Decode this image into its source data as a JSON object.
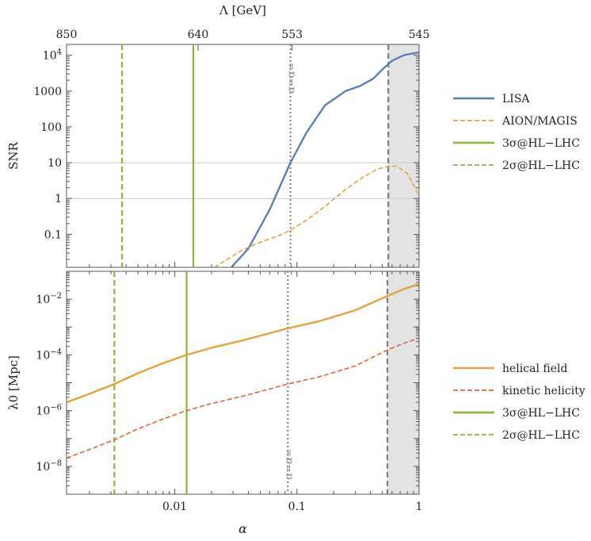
{
  "chart_data": [
    {
      "type": "line",
      "panel": "top",
      "ylabel": "SNR",
      "yscale": "log",
      "xscale": "log",
      "xlim": [
        0.0013,
        1.0
      ],
      "ylim": [
        0.012,
        20000
      ],
      "yticks": [
        {
          "v": 10000,
          "label": "10^4"
        },
        {
          "v": 1000,
          "label": "1000"
        },
        {
          "v": 100,
          "label": "100"
        },
        {
          "v": 10,
          "label": "10"
        },
        {
          "v": 1,
          "label": "1"
        },
        {
          "v": 0.1,
          "label": "0.1"
        }
      ],
      "hlines": [
        10,
        1
      ],
      "top_axis": {
        "label": "Λ [GeV]",
        "ticks": [
          {
            "alpha": 0.0013,
            "label": "850"
          },
          {
            "alpha": 0.0155,
            "label": "640"
          },
          {
            "alpha": 0.0913,
            "label": "553"
          },
          {
            "alpha": 1.0,
            "label": "545"
          }
        ]
      },
      "vlines": [
        {
          "x": 0.0037,
          "style": "dashed",
          "color": "#8fb339"
        },
        {
          "x": 0.0142,
          "style": "solid",
          "color": "#8fb339"
        },
        {
          "x": 0.0885,
          "style": "dotted",
          "color": "#7f7f7f",
          "label": "α=α∞"
        },
        {
          "x": 0.56,
          "style": "dashed",
          "color": "#7f7f7f"
        }
      ],
      "shade": [
        0.56,
        1.0
      ],
      "series": [
        {
          "name": "LISA",
          "color": "#5b7fb5",
          "style": "solid",
          "x": [
            0.029,
            0.04,
            0.06,
            0.0885,
            0.12,
            0.17,
            0.25,
            0.33,
            0.42,
            0.5,
            0.6,
            0.75,
            1.0
          ],
          "y": [
            0.012,
            0.04,
            0.5,
            10,
            70,
            400,
            1000,
            1400,
            2200,
            4000,
            7000,
            10000,
            12000
          ]
        },
        {
          "name": "AION/MAGIS",
          "color": "#e3a33a",
          "style": "dashed",
          "x": [
            0.021,
            0.027,
            0.035,
            0.05,
            0.07,
            0.0885,
            0.12,
            0.17,
            0.25,
            0.35,
            0.45,
            0.56,
            0.66,
            0.8,
            0.93,
            1.0
          ],
          "y": [
            0.012,
            0.02,
            0.035,
            0.06,
            0.09,
            0.13,
            0.25,
            0.6,
            1.8,
            4,
            6.5,
            8,
            8,
            5,
            2,
            1.1
          ]
        }
      ],
      "legend": [
        {
          "label": "LISA",
          "color": "#5b7fb5",
          "style": "solid"
        },
        {
          "label": "AION/MAGIS",
          "color": "#e3a33a",
          "style": "dashed"
        },
        {
          "label": "3σ@HL−LHC",
          "color": "#8fb339",
          "style": "solid"
        },
        {
          "label": "2σ@HL−LHC",
          "color": "#8fb339",
          "style": "dashed"
        }
      ]
    },
    {
      "type": "line",
      "panel": "bottom",
      "ylabel": "λ0 [Mpc]",
      "xlabel": "α",
      "yscale": "log",
      "xscale": "log",
      "xlim": [
        0.0013,
        1.0
      ],
      "ylim": [
        1e-09,
        0.1
      ],
      "xticks": [
        {
          "v": 0.01,
          "label": "0.01"
        },
        {
          "v": 0.1,
          "label": "0.1"
        },
        {
          "v": 1,
          "label": "1"
        }
      ],
      "yticks": [
        {
          "v": 0.01,
          "label": "10^-2"
        },
        {
          "v": 0.0001,
          "label": "10^-4"
        },
        {
          "v": 1e-06,
          "label": "10^-6"
        },
        {
          "v": 1e-08,
          "label": "10^-8"
        }
      ],
      "vlines": [
        {
          "x": 0.0032,
          "style": "dashed",
          "color": "#8fb339"
        },
        {
          "x": 0.0125,
          "style": "solid",
          "color": "#8fb339"
        },
        {
          "x": 0.0842,
          "style": "dotted",
          "color": "#7f7f7f",
          "label": "α=α∞"
        },
        {
          "x": 0.55,
          "style": "dashed",
          "color": "#7f7f7f"
        }
      ],
      "shade": [
        0.55,
        1.0
      ],
      "series": [
        {
          "name": "helical field",
          "color": "#e3a33a",
          "style": "solid",
          "x": [
            0.0013,
            0.002,
            0.0032,
            0.005,
            0.008,
            0.0125,
            0.02,
            0.035,
            0.06,
            0.0842,
            0.15,
            0.3,
            0.55,
            0.75,
            1.0
          ],
          "y": [
            2e-06,
            4e-06,
            9e-06,
            2.2e-05,
            5e-05,
            0.0001,
            0.00018,
            0.00032,
            0.0006,
            0.0009,
            0.0016,
            0.004,
            0.013,
            0.023,
            0.035
          ]
        },
        {
          "name": "kinetic helicity",
          "color": "#e8633a",
          "style": "dashed",
          "x": [
            0.0013,
            0.002,
            0.0032,
            0.005,
            0.008,
            0.0125,
            0.02,
            0.035,
            0.06,
            0.0842,
            0.15,
            0.3,
            0.55,
            0.75,
            1.0
          ],
          "y": [
            2e-08,
            4e-08,
            9e-08,
            2.2e-07,
            5e-07,
            1e-06,
            1.8e-06,
            3.2e-06,
            6e-06,
            9e-06,
            1.6e-05,
            4e-05,
            0.00015,
            0.00026,
            0.0004
          ]
        }
      ],
      "legend": [
        {
          "label": "helical field",
          "color": "#e3a33a",
          "style": "solid"
        },
        {
          "label": "kinetic helicity",
          "color": "#e8633a",
          "style": "dashed"
        },
        {
          "label": "3σ@HL−LHC",
          "color": "#8fb339",
          "style": "solid"
        },
        {
          "label": "2σ@HL−LHC",
          "color": "#8fb339",
          "style": "dashed"
        }
      ]
    }
  ]
}
